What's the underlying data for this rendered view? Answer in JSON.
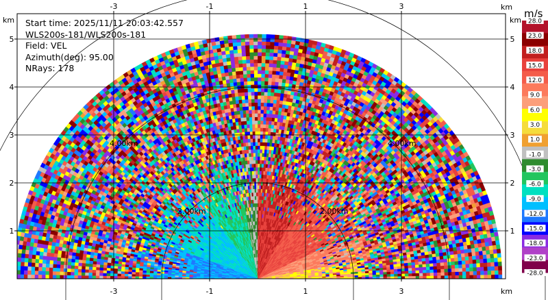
{
  "chart_data": {
    "type": "heatmap",
    "subtype": "polar-ppi-radar",
    "info": {
      "start_time": "Start time: 2025/11/11 20:03:42.557",
      "instrument": "WLS200s-181/WLS200s-181",
      "field": "Field: VEL",
      "azimuth": "Azimuth(deg): 95.00",
      "nrays": "NRays: 178"
    },
    "x_unit": "km",
    "y_unit": "km",
    "xlim": [
      -5,
      5.5
    ],
    "ylim": [
      -0.5,
      5.5
    ],
    "x_ticks": [
      -3,
      -1,
      1,
      3
    ],
    "y_ticks": [
      1,
      2,
      3,
      4,
      5
    ],
    "range_rings_km": [
      2,
      4,
      6
    ],
    "range_ring_labels": [
      "2.00km",
      "4.00km"
    ],
    "max_range_km": 5.1,
    "colorbar": {
      "title": "m/s",
      "ticks": [
        "28.0",
        "23.0",
        "18.0",
        "15.0",
        "12.0",
        "9.0",
        "6.0",
        "3.0",
        "1.0",
        "-1.0",
        "-3.0",
        "-6.0",
        "-9.0",
        "-12.0",
        "-15.0",
        "-18.0",
        "-23.0",
        "-28.0"
      ],
      "colors": [
        "#b3122a",
        "#8b0000",
        "#c21f1f",
        "#e8413c",
        "#f45c4a",
        "#fc7a5c",
        "#fc9e7a",
        "#ffff00",
        "#f5dc3c",
        "#f0a030",
        "#c0c0c0",
        "#2e8b2e",
        "#22c55e",
        "#00e0c0",
        "#00bfff",
        "#1e78ff",
        "#0000ff",
        "#8a2be2",
        "#b040c8",
        "#80004a"
      ]
    },
    "velocity_sectors": [
      {
        "az_from": 0,
        "az_to": 10,
        "value": 6
      },
      {
        "az_from": 10,
        "az_to": 25,
        "value": 9
      },
      {
        "az_from": 25,
        "az_to": 60,
        "value": 15
      },
      {
        "az_from": 60,
        "az_to": 90,
        "value": 18
      },
      {
        "az_from": 90,
        "az_to": 100,
        "value": -3
      },
      {
        "az_from": 100,
        "az_to": 125,
        "value": -9
      },
      {
        "az_from": 125,
        "az_to": 160,
        "value": -12
      },
      {
        "az_from": 160,
        "az_to": 180,
        "value": -15
      }
    ]
  }
}
